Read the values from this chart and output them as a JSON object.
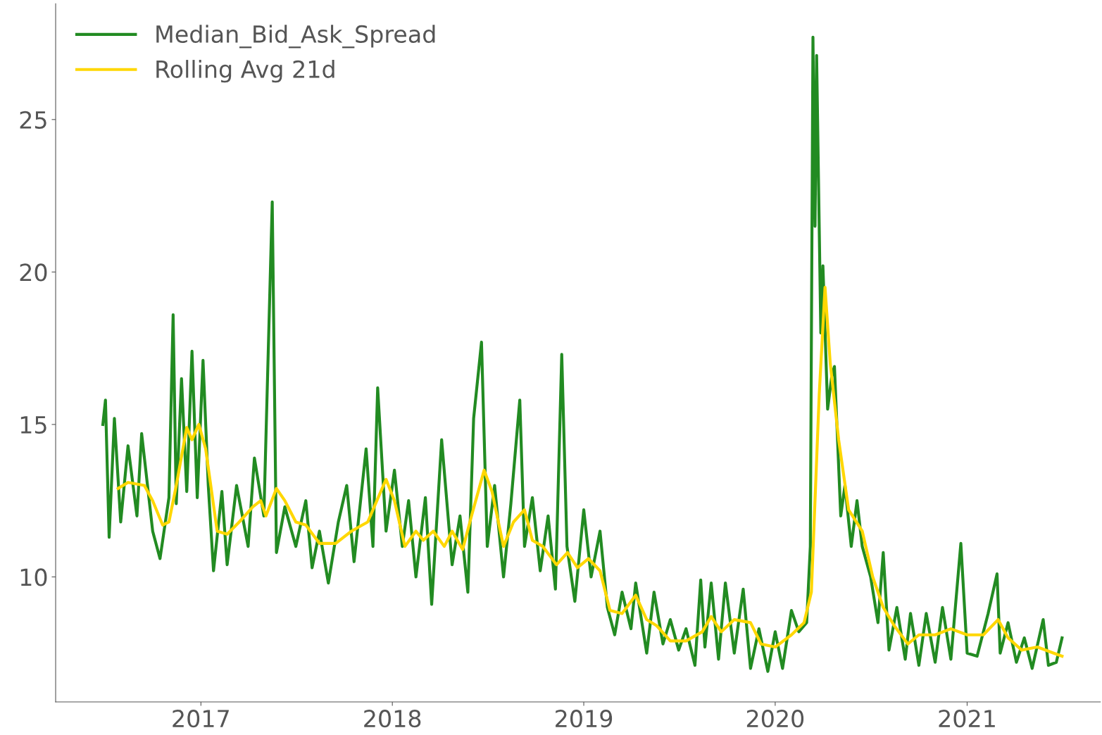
{
  "chart_data": {
    "type": "line",
    "xlim": [
      "2016-03-30",
      "2021-09-12"
    ],
    "xticks": [
      "2017",
      "2018",
      "2019",
      "2020",
      "2021"
    ],
    "ylim": [
      5.9,
      28.8
    ],
    "yticks": [
      10,
      15,
      20,
      25
    ],
    "grid": false,
    "legend": "top left",
    "series": [
      {
        "name": "Median_Bid_Ask_Spread",
        "color": "#228b22",
        "x": [
          "2016-06-28",
          "2016-07-03",
          "2016-07-10",
          "2016-07-20",
          "2016-08-01",
          "2016-08-15",
          "2016-09-01",
          "2016-09-10",
          "2016-10-01",
          "2016-10-15",
          "2016-11-01",
          "2016-11-09",
          "2016-11-15",
          "2016-11-25",
          "2016-12-05",
          "2016-12-15",
          "2016-12-25",
          "2017-01-05",
          "2017-01-15",
          "2017-01-25",
          "2017-02-10",
          "2017-02-20",
          "2017-03-10",
          "2017-04-01",
          "2017-04-13",
          "2017-05-01",
          "2017-05-17",
          "2017-05-25",
          "2017-06-10",
          "2017-07-01",
          "2017-07-20",
          "2017-08-01",
          "2017-08-15",
          "2017-09-01",
          "2017-09-20",
          "2017-10-06",
          "2017-10-20",
          "2017-11-12",
          "2017-11-25",
          "2017-12-04",
          "2017-12-20",
          "2018-01-05",
          "2018-01-20",
          "2018-02-01",
          "2018-02-15",
          "2018-03-05",
          "2018-03-17",
          "2018-04-05",
          "2018-04-25",
          "2018-05-10",
          "2018-05-25",
          "2018-06-05",
          "2018-06-20",
          "2018-07-01",
          "2018-07-15",
          "2018-08-01",
          "2018-08-15",
          "2018-09-01",
          "2018-09-10",
          "2018-09-25",
          "2018-10-10",
          "2018-10-25",
          "2018-11-08",
          "2018-11-20",
          "2018-11-30",
          "2018-12-15",
          "2019-01-01",
          "2019-01-15",
          "2019-02-01",
          "2019-02-15",
          "2019-03-01",
          "2019-03-15",
          "2019-04-01",
          "2019-04-10",
          "2019-05-01",
          "2019-05-15",
          "2019-06-01",
          "2019-06-15",
          "2019-07-01",
          "2019-07-15",
          "2019-08-01",
          "2019-08-12",
          "2019-08-20",
          "2019-09-01",
          "2019-09-15",
          "2019-09-28",
          "2019-10-15",
          "2019-11-01",
          "2019-11-15",
          "2019-12-01",
          "2019-12-18",
          "2020-01-01",
          "2020-01-15",
          "2020-02-01",
          "2020-02-15",
          "2020-03-01",
          "2020-03-08",
          "2020-03-13",
          "2020-03-17",
          "2020-03-20",
          "2020-03-28",
          "2020-04-01",
          "2020-04-10",
          "2020-04-18",
          "2020-04-23",
          "2020-05-05",
          "2020-05-13",
          "2020-05-25",
          "2020-06-05",
          "2020-06-15",
          "2020-07-01",
          "2020-07-15",
          "2020-07-25",
          "2020-08-05",
          "2020-08-20",
          "2020-09-05",
          "2020-09-15",
          "2020-10-01",
          "2020-10-15",
          "2020-11-01",
          "2020-11-15",
          "2020-12-01",
          "2020-12-20",
          "2021-01-01",
          "2021-01-20",
          "2021-02-10",
          "2021-02-27",
          "2021-03-05",
          "2021-03-20",
          "2021-04-05",
          "2021-04-20",
          "2021-05-05",
          "2021-05-26",
          "2021-06-05",
          "2021-06-20",
          "2021-07-01"
        ],
        "values": [
          15.0,
          15.8,
          11.3,
          15.2,
          11.8,
          14.3,
          12.0,
          14.7,
          11.5,
          10.6,
          12.6,
          18.6,
          12.4,
          16.5,
          12.8,
          17.4,
          12.6,
          17.1,
          13.0,
          10.2,
          12.8,
          10.4,
          13.0,
          11.0,
          13.9,
          12.0,
          22.3,
          10.8,
          12.3,
          11.0,
          12.5,
          10.3,
          11.5,
          9.8,
          11.8,
          13.0,
          10.5,
          14.2,
          11.0,
          16.2,
          11.5,
          13.5,
          11.0,
          12.5,
          10.0,
          12.6,
          9.1,
          14.5,
          10.4,
          12.0,
          9.5,
          15.2,
          17.7,
          11.0,
          13.0,
          10.0,
          12.4,
          15.8,
          11.0,
          12.6,
          10.2,
          12.0,
          9.6,
          17.3,
          11.0,
          9.2,
          12.2,
          10.0,
          11.5,
          9.0,
          8.1,
          9.5,
          8.3,
          9.8,
          7.5,
          9.5,
          7.8,
          8.6,
          7.6,
          8.3,
          7.1,
          9.9,
          7.7,
          9.8,
          7.3,
          9.8,
          7.5,
          9.6,
          7.0,
          8.3,
          6.9,
          8.2,
          7.0,
          8.9,
          8.2,
          8.5,
          11.0,
          27.7,
          21.5,
          27.1,
          18.0,
          20.2,
          15.5,
          16.6,
          16.9,
          12.0,
          13.0,
          11.0,
          12.5,
          11.0,
          10.0,
          8.5,
          10.8,
          7.6,
          9.0,
          7.3,
          8.8,
          7.1,
          8.8,
          7.2,
          9.0,
          7.3,
          11.1,
          7.5,
          7.4,
          8.8,
          10.1,
          7.5,
          8.5,
          7.2,
          8.0,
          7.0,
          8.6,
          7.1,
          7.2,
          8.0
        ]
      },
      {
        "name": "Rolling Avg 21d",
        "color": "#ffd700",
        "x": [
          "2016-07-27",
          "2016-08-15",
          "2016-09-15",
          "2016-10-01",
          "2016-10-20",
          "2016-11-01",
          "2016-11-15",
          "2016-12-05",
          "2016-12-15",
          "2016-12-28",
          "2017-01-10",
          "2017-02-01",
          "2017-02-20",
          "2017-03-15",
          "2017-04-10",
          "2017-04-25",
          "2017-05-05",
          "2017-05-25",
          "2017-06-10",
          "2017-07-01",
          "2017-07-20",
          "2017-08-15",
          "2017-09-15",
          "2017-10-15",
          "2017-11-15",
          "2017-12-10",
          "2017-12-20",
          "2018-01-05",
          "2018-01-25",
          "2018-02-15",
          "2018-03-01",
          "2018-03-20",
          "2018-04-10",
          "2018-04-25",
          "2018-05-15",
          "2018-06-01",
          "2018-06-25",
          "2018-07-10",
          "2018-08-01",
          "2018-08-20",
          "2018-09-10",
          "2018-09-25",
          "2018-10-15",
          "2018-11-10",
          "2018-12-01",
          "2018-12-20",
          "2019-01-10",
          "2019-02-01",
          "2019-02-20",
          "2019-03-15",
          "2019-04-10",
          "2019-05-01",
          "2019-05-20",
          "2019-06-15",
          "2019-07-15",
          "2019-08-15",
          "2019-09-01",
          "2019-09-20",
          "2019-10-15",
          "2019-11-15",
          "2019-12-05",
          "2020-01-01",
          "2020-02-01",
          "2020-02-25",
          "2020-03-10",
          "2020-03-25",
          "2020-04-05",
          "2020-04-15",
          "2020-05-01",
          "2020-05-20",
          "2020-06-15",
          "2020-07-05",
          "2020-07-25",
          "2020-08-15",
          "2020-09-10",
          "2020-10-01",
          "2020-11-01",
          "2020-12-01",
          "2021-01-01",
          "2021-02-01",
          "2021-03-01",
          "2021-03-20",
          "2021-04-15",
          "2021-05-15",
          "2021-06-15",
          "2021-07-01"
        ],
        "values": [
          12.9,
          13.1,
          13.0,
          12.5,
          11.7,
          11.8,
          13.0,
          14.9,
          14.5,
          15.0,
          14.2,
          11.5,
          11.4,
          11.8,
          12.3,
          12.5,
          12.0,
          12.9,
          12.5,
          11.8,
          11.7,
          11.1,
          11.1,
          11.5,
          11.8,
          12.8,
          13.2,
          12.5,
          11.0,
          11.5,
          11.2,
          11.5,
          11.0,
          11.5,
          10.9,
          12.0,
          13.5,
          12.8,
          11.0,
          11.8,
          12.2,
          11.2,
          11.0,
          10.4,
          10.8,
          10.3,
          10.6,
          10.2,
          8.9,
          8.8,
          9.4,
          8.6,
          8.4,
          7.9,
          7.9,
          8.2,
          8.7,
          8.2,
          8.6,
          8.5,
          7.8,
          7.7,
          8.1,
          8.5,
          9.5,
          16.0,
          19.5,
          17.0,
          14.5,
          12.2,
          11.5,
          10.0,
          9.0,
          8.4,
          7.8,
          8.1,
          8.1,
          8.3,
          8.1,
          8.1,
          8.6,
          8.0,
          7.6,
          7.7,
          7.5,
          7.4
        ]
      }
    ]
  }
}
